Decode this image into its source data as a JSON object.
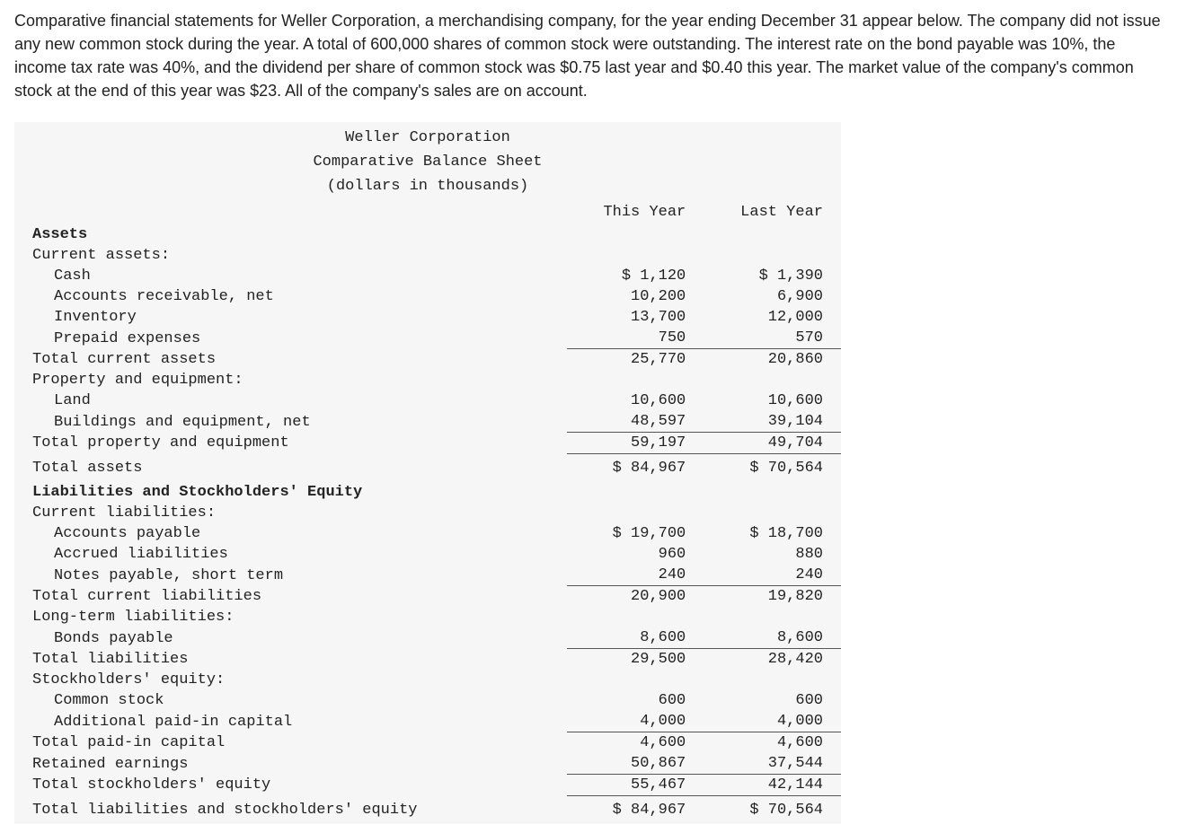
{
  "intro": "Comparative financial statements for Weller Corporation, a merchandising company, for the year ending December 31 appear below. The company did not issue any new common stock during the year. A total of 600,000 shares of common stock were outstanding. The interest rate on the bond payable was 10%, the income tax rate was 40%, and the dividend per share of common stock was $0.75 last year and $0.40 this year. The market value of the company's common stock at the end of this year was $23. All of the company's sales are on account.",
  "sheet": {
    "title1": "Weller Corporation",
    "title2": "Comparative Balance Sheet",
    "title3": "(dollars in thousands)",
    "col1": "This Year",
    "col2": "Last Year",
    "rows": {
      "assets_h": "Assets",
      "cur_assets_h": "Current assets:",
      "cash": {
        "l": "Cash",
        "a": "$ 1,120",
        "b": "$ 1,390"
      },
      "ar": {
        "l": "Accounts receivable, net",
        "a": "10,200",
        "b": "6,900"
      },
      "inv": {
        "l": "Inventory",
        "a": "13,700",
        "b": "12,000"
      },
      "pre": {
        "l": "Prepaid expenses",
        "a": "750",
        "b": "570"
      },
      "tca": {
        "l": "Total current assets",
        "a": "25,770",
        "b": "20,860"
      },
      "pe_h": "Property and equipment:",
      "land": {
        "l": "Land",
        "a": "10,600",
        "b": "10,600"
      },
      "beq": {
        "l": "Buildings and equipment, net",
        "a": "48,597",
        "b": "39,104"
      },
      "tpe": {
        "l": "Total property and equipment",
        "a": "59,197",
        "b": "49,704"
      },
      "ta": {
        "l": "Total assets",
        "a": "$ 84,967",
        "b": "$ 70,564"
      },
      "liab_h": "Liabilities and Stockholders' Equity",
      "cl_h": "Current liabilities:",
      "ap": {
        "l": "Accounts payable",
        "a": "$ 19,700",
        "b": "$ 18,700"
      },
      "acc": {
        "l": "Accrued liabilities",
        "a": "960",
        "b": "880"
      },
      "np": {
        "l": "Notes payable, short term",
        "a": "240",
        "b": "240"
      },
      "tcl": {
        "l": "Total current liabilities",
        "a": "20,900",
        "b": "19,820"
      },
      "ltl_h": "Long-term liabilities:",
      "bp": {
        "l": "Bonds payable",
        "a": "8,600",
        "b": "8,600"
      },
      "tl": {
        "l": "Total liabilities",
        "a": "29,500",
        "b": "28,420"
      },
      "se_h": "Stockholders' equity:",
      "cs": {
        "l": "Common stock",
        "a": "600",
        "b": "600"
      },
      "apic": {
        "l": "Additional paid-in capital",
        "a": "4,000",
        "b": "4,000"
      },
      "tpic": {
        "l": "Total paid-in capital",
        "a": "4,600",
        "b": "4,600"
      },
      "re": {
        "l": "Retained earnings",
        "a": "50,867",
        "b": "37,544"
      },
      "tse": {
        "l": "Total stockholders' equity",
        "a": "55,467",
        "b": "42,144"
      },
      "tlse": {
        "l": "Total liabilities and stockholders' equity",
        "a": "$ 84,967",
        "b": "$ 70,564"
      }
    }
  }
}
